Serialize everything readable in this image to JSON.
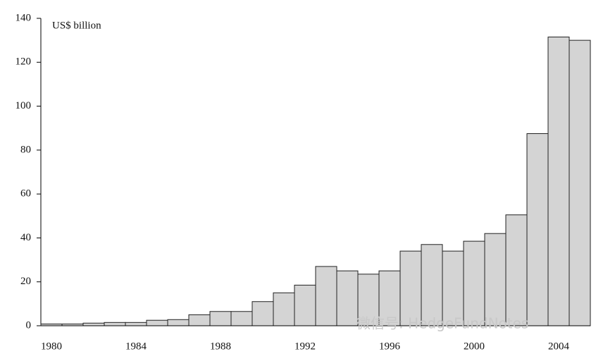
{
  "chart_data": {
    "type": "bar",
    "y_label": "US$ billion",
    "watermark": "微信号: HedgeFundNotes",
    "categories": [
      "1980",
      null,
      null,
      null,
      "1984",
      null,
      null,
      null,
      "1988",
      null,
      null,
      null,
      "1992",
      null,
      null,
      null,
      "1996",
      null,
      null,
      null,
      "2000",
      null,
      null,
      null,
      "2004",
      null
    ],
    "values": [
      0.8,
      0.8,
      1.2,
      1.5,
      1.5,
      2.5,
      2.8,
      5,
      6.5,
      6.5,
      11,
      15,
      18.5,
      27,
      25,
      23.5,
      25,
      34,
      37,
      34,
      38.5,
      42,
      50.5,
      87.5,
      131.5,
      130
    ],
    "color": "#d4d4d4",
    "ylim": [
      0,
      140
    ],
    "yticks": [
      0,
      20,
      40,
      60,
      80,
      100,
      120,
      140
    ],
    "grid": false
  }
}
